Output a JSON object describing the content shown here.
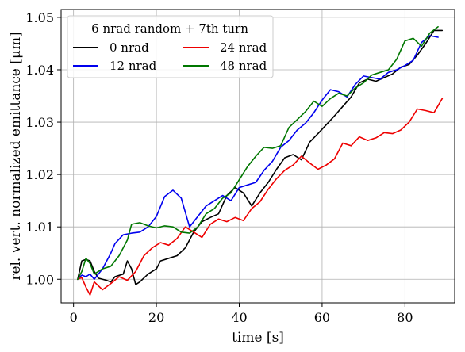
{
  "chart_data": {
    "type": "line",
    "xlabel": "time [s]",
    "ylabel": "rel. vert. normalized emittance [μm]",
    "xlim": [
      -3,
      92
    ],
    "ylim": [
      0.9955,
      1.0515
    ],
    "x_ticks": [
      0,
      20,
      40,
      60,
      80
    ],
    "x_tick_labels": [
      "0",
      "20",
      "40",
      "60",
      "80"
    ],
    "y_ticks": [
      1.0,
      1.01,
      1.02,
      1.03,
      1.04,
      1.05
    ],
    "y_tick_labels": [
      "1.00",
      "1.01",
      "1.02",
      "1.03",
      "1.04",
      "1.05"
    ],
    "grid": true,
    "legend": {
      "title": "6 nrad random + 7th turn",
      "placement": "top-left",
      "columns": 2
    },
    "series": [
      {
        "name": "0 nrad",
        "color": "#000000",
        "points": [
          [
            1,
            1.0
          ],
          [
            2,
            1.0035
          ],
          [
            3,
            1.0038
          ],
          [
            4,
            1.0035
          ],
          [
            5,
            1.0015
          ],
          [
            6,
            1.0002
          ],
          [
            8,
            0.9998
          ],
          [
            9,
            0.9995
          ],
          [
            10,
            1.0005
          ],
          [
            12,
            1.001
          ],
          [
            13,
            1.0035
          ],
          [
            14,
            1.002
          ],
          [
            15,
            0.999
          ],
          [
            16,
            0.9995
          ],
          [
            18,
            1.001
          ],
          [
            20,
            1.002
          ],
          [
            21,
            1.0035
          ],
          [
            23,
            1.004
          ],
          [
            25,
            1.0045
          ],
          [
            27,
            1.006
          ],
          [
            29,
            1.009
          ],
          [
            31,
            1.011
          ],
          [
            33,
            1.0118
          ],
          [
            35,
            1.0125
          ],
          [
            37,
            1.016
          ],
          [
            39,
            1.0175
          ],
          [
            41,
            1.0165
          ],
          [
            43,
            1.014
          ],
          [
            45,
            1.0165
          ],
          [
            47,
            1.0185
          ],
          [
            49,
            1.021
          ],
          [
            51,
            1.0232
          ],
          [
            53,
            1.0238
          ],
          [
            55,
            1.0228
          ],
          [
            57,
            1.0262
          ],
          [
            59,
            1.0278
          ],
          [
            61,
            1.0295
          ],
          [
            63,
            1.0312
          ],
          [
            65,
            1.033
          ],
          [
            67,
            1.0348
          ],
          [
            69,
            1.0375
          ],
          [
            71,
            1.0382
          ],
          [
            73,
            1.0378
          ],
          [
            75,
            1.0385
          ],
          [
            77,
            1.0392
          ],
          [
            79,
            1.0405
          ],
          [
            81,
            1.041
          ],
          [
            83,
            1.0428
          ],
          [
            85,
            1.045
          ],
          [
            87,
            1.0475
          ],
          [
            89,
            1.0475
          ]
        ]
      },
      {
        "name": "12 nrad",
        "color": "#0000ee",
        "points": [
          [
            1,
            1.0
          ],
          [
            2,
            1.0008
          ],
          [
            3,
            1.0005
          ],
          [
            4,
            1.001
          ],
          [
            5,
            1.0
          ],
          [
            7,
            1.002
          ],
          [
            9,
            1.005
          ],
          [
            10,
            1.0068
          ],
          [
            12,
            1.0085
          ],
          [
            14,
            1.0088
          ],
          [
            16,
            1.009
          ],
          [
            18,
            1.01
          ],
          [
            20,
            1.012
          ],
          [
            22,
            1.0158
          ],
          [
            24,
            1.017
          ],
          [
            26,
            1.0155
          ],
          [
            28,
            1.01
          ],
          [
            30,
            1.012
          ],
          [
            32,
            1.014
          ],
          [
            34,
            1.015
          ],
          [
            36,
            1.016
          ],
          [
            38,
            1.015
          ],
          [
            40,
            1.0175
          ],
          [
            42,
            1.018
          ],
          [
            44,
            1.0185
          ],
          [
            46,
            1.0208
          ],
          [
            48,
            1.0225
          ],
          [
            50,
            1.0252
          ],
          [
            52,
            1.0265
          ],
          [
            54,
            1.0285
          ],
          [
            56,
            1.0298
          ],
          [
            58,
            1.0318
          ],
          [
            60,
            1.0342
          ],
          [
            62,
            1.0362
          ],
          [
            64,
            1.0358
          ],
          [
            66,
            1.0348
          ],
          [
            68,
            1.0372
          ],
          [
            70,
            1.0388
          ],
          [
            72,
            1.0385
          ],
          [
            74,
            1.0382
          ],
          [
            76,
            1.0395
          ],
          [
            78,
            1.04
          ],
          [
            80,
            1.0408
          ],
          [
            82,
            1.0418
          ],
          [
            84,
            1.0452
          ],
          [
            86,
            1.0465
          ],
          [
            88,
            1.0462
          ]
        ]
      },
      {
        "name": "24 nrad",
        "color": "#ee0000",
        "points": [
          [
            1,
            1.0
          ],
          [
            2,
            1.0003
          ],
          [
            3,
            0.9985
          ],
          [
            4,
            0.997
          ],
          [
            5,
            0.9995
          ],
          [
            7,
            0.998
          ],
          [
            9,
            0.9992
          ],
          [
            11,
            1.0005
          ],
          [
            13,
            0.9998
          ],
          [
            15,
            1.0015
          ],
          [
            17,
            1.0045
          ],
          [
            19,
            1.006
          ],
          [
            21,
            1.007
          ],
          [
            23,
            1.0065
          ],
          [
            25,
            1.0078
          ],
          [
            27,
            1.01
          ],
          [
            29,
            1.009
          ],
          [
            31,
            1.008
          ],
          [
            33,
            1.0105
          ],
          [
            35,
            1.0115
          ],
          [
            37,
            1.011
          ],
          [
            39,
            1.0118
          ],
          [
            41,
            1.0112
          ],
          [
            43,
            1.0135
          ],
          [
            45,
            1.0148
          ],
          [
            47,
            1.0172
          ],
          [
            49,
            1.0192
          ],
          [
            51,
            1.0208
          ],
          [
            53,
            1.0218
          ],
          [
            55,
            1.0235
          ],
          [
            57,
            1.0222
          ],
          [
            59,
            1.021
          ],
          [
            61,
            1.0218
          ],
          [
            63,
            1.023
          ],
          [
            65,
            1.026
          ],
          [
            67,
            1.0255
          ],
          [
            69,
            1.0272
          ],
          [
            71,
            1.0265
          ],
          [
            73,
            1.027
          ],
          [
            75,
            1.028
          ],
          [
            77,
            1.0278
          ],
          [
            79,
            1.0285
          ],
          [
            81,
            1.03
          ],
          [
            83,
            1.0325
          ],
          [
            85,
            1.0322
          ],
          [
            87,
            1.0318
          ],
          [
            89,
            1.0345
          ]
        ]
      },
      {
        "name": "48 nrad",
        "color": "#007700",
        "points": [
          [
            1,
            1.0
          ],
          [
            2,
            1.0015
          ],
          [
            3,
            1.004
          ],
          [
            4,
            1.003
          ],
          [
            5,
            1.001
          ],
          [
            7,
            1.002
          ],
          [
            9,
            1.0025
          ],
          [
            11,
            1.0045
          ],
          [
            13,
            1.0075
          ],
          [
            14,
            1.0105
          ],
          [
            16,
            1.0108
          ],
          [
            18,
            1.0102
          ],
          [
            20,
            1.0098
          ],
          [
            22,
            1.0102
          ],
          [
            24,
            1.01
          ],
          [
            26,
            1.009
          ],
          [
            28,
            1.0088
          ],
          [
            30,
            1.01
          ],
          [
            32,
            1.0125
          ],
          [
            34,
            1.0135
          ],
          [
            36,
            1.0155
          ],
          [
            38,
            1.0165
          ],
          [
            40,
            1.019
          ],
          [
            42,
            1.0215
          ],
          [
            44,
            1.0235
          ],
          [
            46,
            1.0252
          ],
          [
            48,
            1.025
          ],
          [
            50,
            1.0255
          ],
          [
            52,
            1.029
          ],
          [
            54,
            1.0305
          ],
          [
            56,
            1.032
          ],
          [
            58,
            1.034
          ],
          [
            60,
            1.033
          ],
          [
            62,
            1.0345
          ],
          [
            64,
            1.0355
          ],
          [
            66,
            1.035
          ],
          [
            68,
            1.0365
          ],
          [
            70,
            1.0375
          ],
          [
            72,
            1.039
          ],
          [
            74,
            1.0395
          ],
          [
            76,
            1.04
          ],
          [
            78,
            1.042
          ],
          [
            80,
            1.0455
          ],
          [
            82,
            1.046
          ],
          [
            84,
            1.0445
          ],
          [
            86,
            1.047
          ],
          [
            88,
            1.0482
          ]
        ]
      }
    ]
  }
}
